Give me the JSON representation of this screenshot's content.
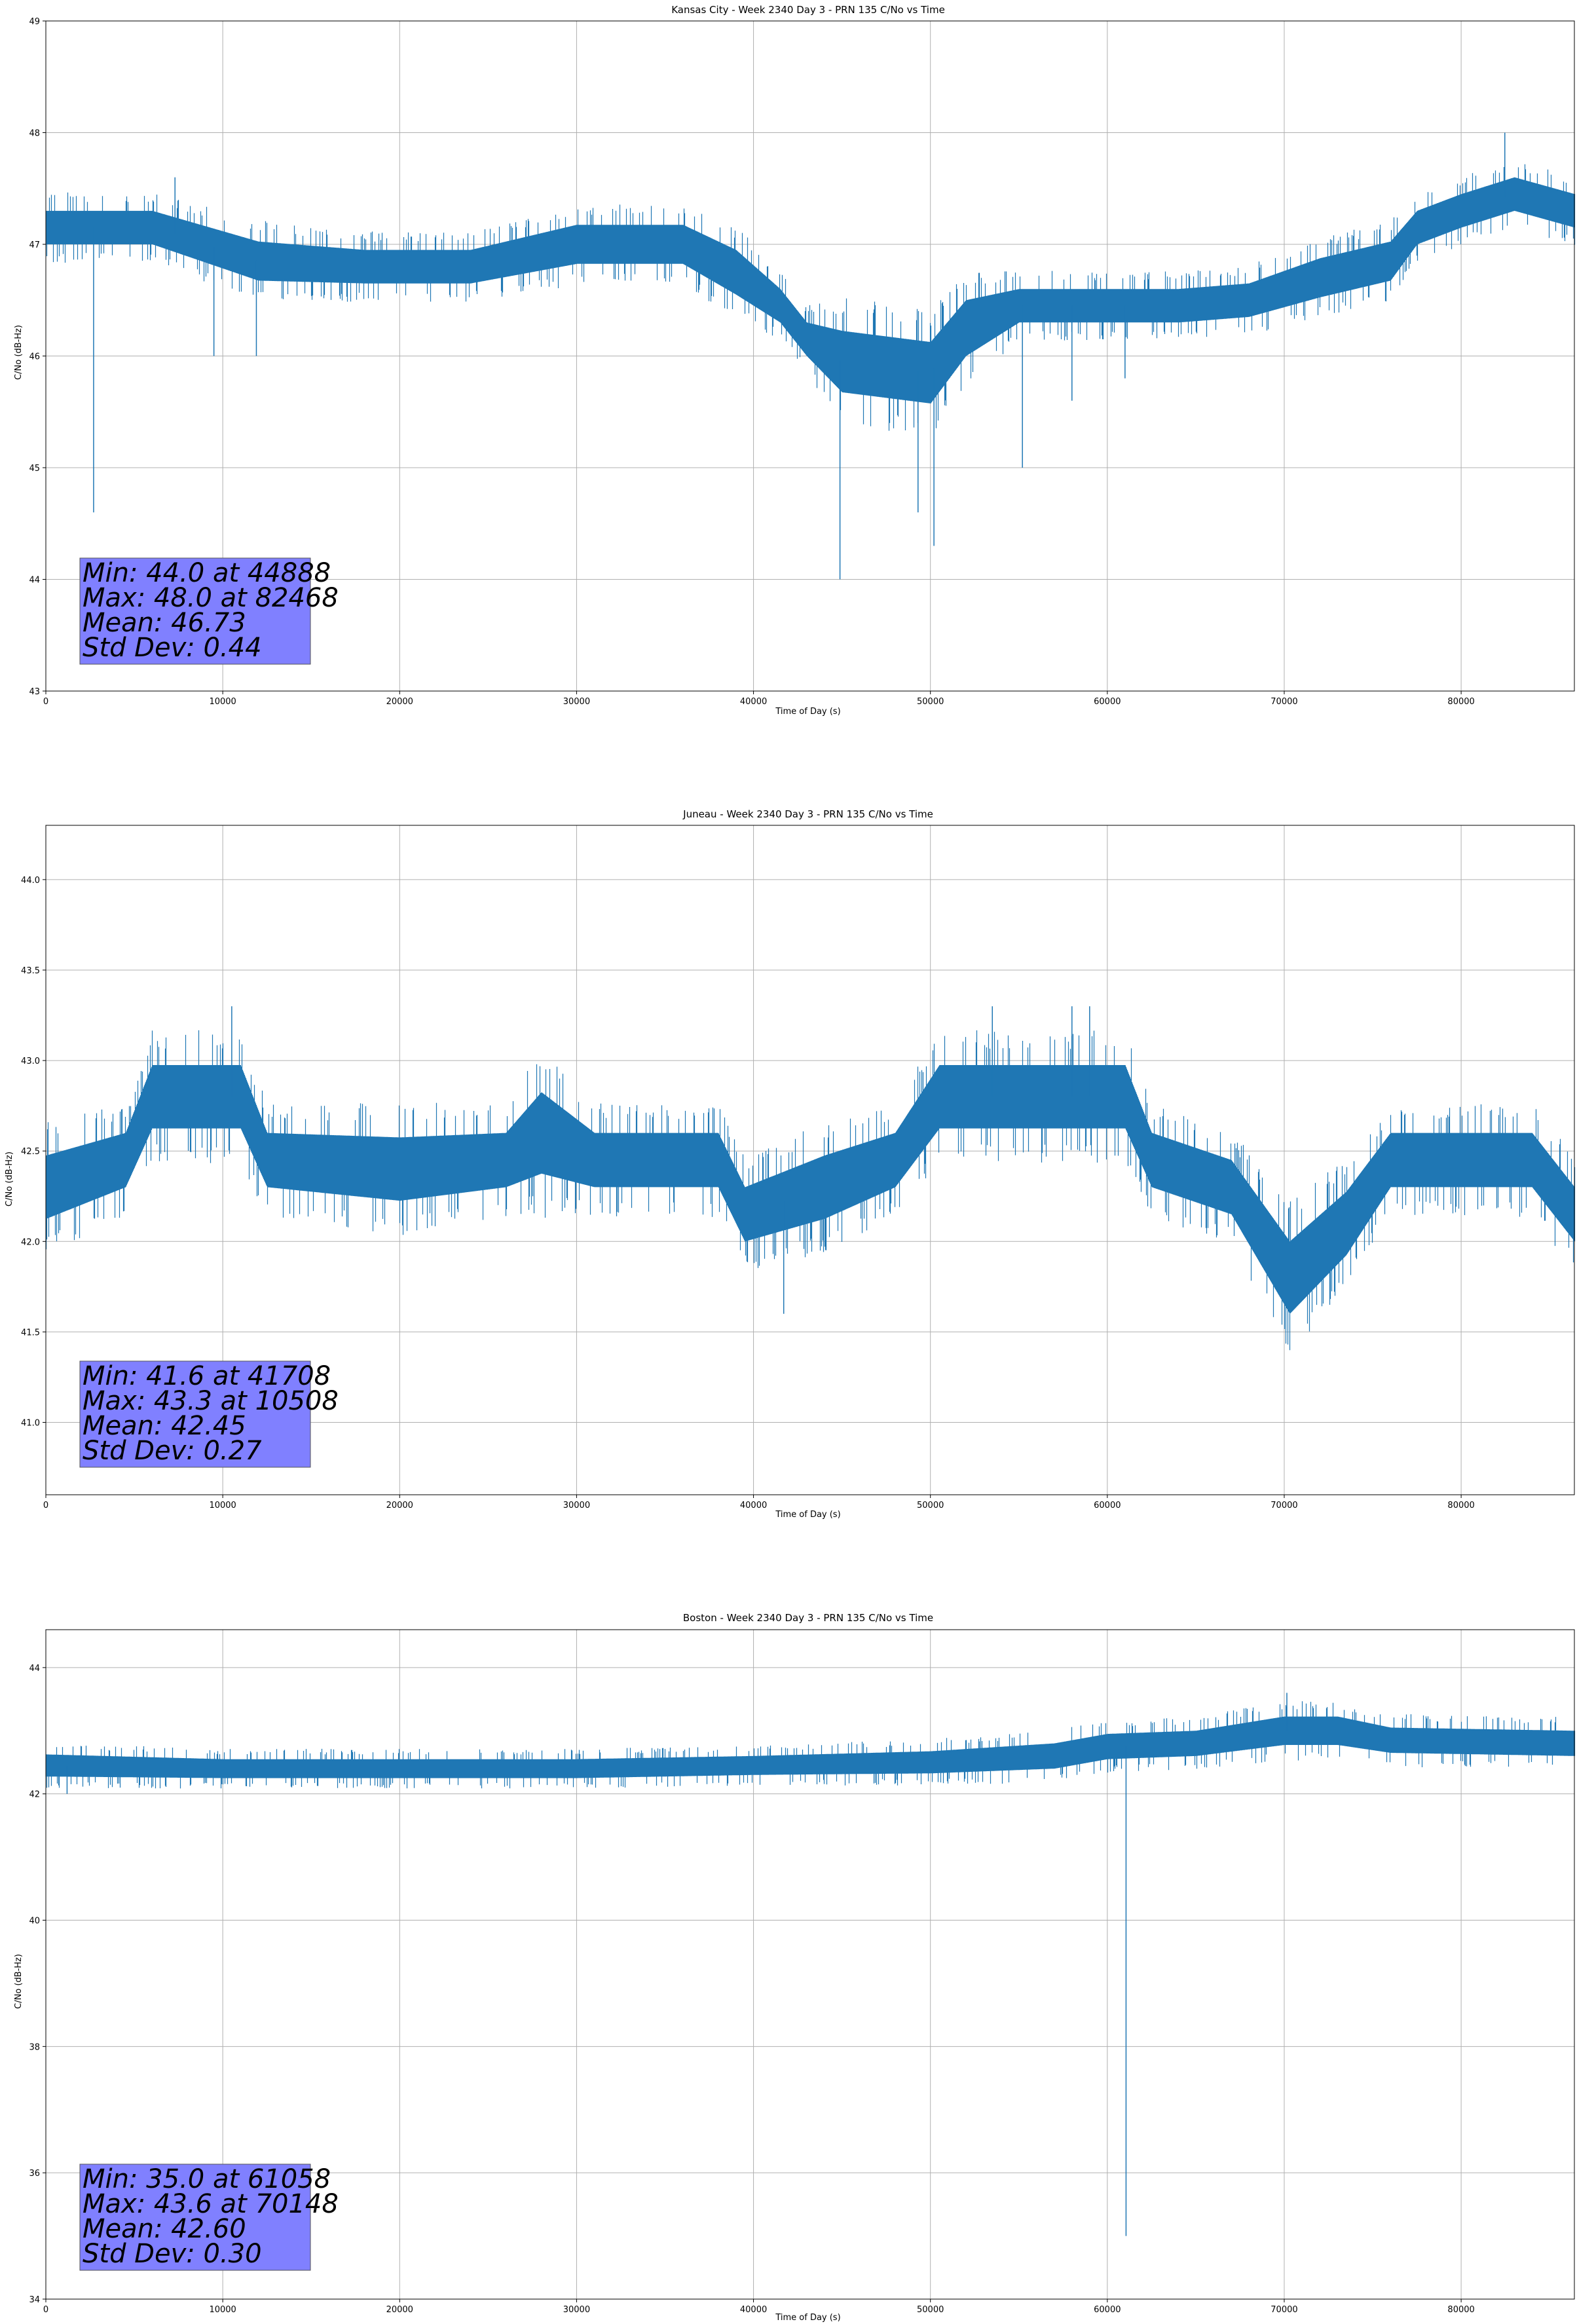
{
  "figure": {
    "background": "#ffffff",
    "line_color": "#1f77b4",
    "grid_color": "#b0b0b0",
    "stats_box_color": "#8080ff"
  },
  "chart_data": [
    {
      "type": "line",
      "title": "Kansas City - Week 2340 Day 3 - PRN 135 C/No vs Time",
      "xlabel": "Time of Day (s)",
      "ylabel": "C/No (dB-Hz)",
      "xlim": [
        0,
        86400
      ],
      "ylim": [
        43,
        49
      ],
      "xticks": [
        0,
        10000,
        20000,
        30000,
        40000,
        50000,
        60000,
        70000,
        80000
      ],
      "xtick_labels": [
        "0",
        "10000",
        "20000",
        "30000",
        "40000",
        "50000",
        "60000",
        "70000",
        "80000"
      ],
      "yticks": [
        43,
        44,
        45,
        46,
        47,
        48,
        49
      ],
      "ytick_labels": [
        "43",
        "44",
        "45",
        "46",
        "47",
        "48",
        "49"
      ],
      "grid": true,
      "series": [
        {
          "name": "C/No",
          "levels": [
            [
              0,
              47.15,
              0.3
            ],
            [
              6000,
              47.15,
              0.3
            ],
            [
              12000,
              46.85,
              0.35
            ],
            [
              18000,
              46.8,
              0.3
            ],
            [
              24000,
              46.8,
              0.3
            ],
            [
              30000,
              47.0,
              0.35
            ],
            [
              36000,
              47.0,
              0.35
            ],
            [
              39000,
              46.75,
              0.4
            ],
            [
              41500,
              46.45,
              0.3
            ],
            [
              43000,
              46.15,
              0.3
            ],
            [
              45000,
              45.95,
              0.55
            ],
            [
              50000,
              45.85,
              0.55
            ],
            [
              52000,
              46.25,
              0.5
            ],
            [
              55000,
              46.45,
              0.3
            ],
            [
              60000,
              46.45,
              0.3
            ],
            [
              64000,
              46.45,
              0.3
            ],
            [
              68000,
              46.5,
              0.3
            ],
            [
              72000,
              46.7,
              0.35
            ],
            [
              76000,
              46.85,
              0.35
            ],
            [
              77500,
              47.15,
              0.3
            ],
            [
              80000,
              47.3,
              0.3
            ],
            [
              83000,
              47.45,
              0.3
            ],
            [
              86400,
              47.3,
              0.3
            ]
          ],
          "spikes": [
            [
              2700,
              44.6
            ],
            [
              7300,
              47.6
            ],
            [
              9500,
              46.0
            ],
            [
              11900,
              46.0
            ],
            [
              44888,
              44.0
            ],
            [
              49300,
              44.6
            ],
            [
              50200,
              44.3
            ],
            [
              55200,
              45.0
            ],
            [
              58000,
              45.6
            ],
            [
              61000,
              45.8
            ],
            [
              82468,
              48.0
            ]
          ]
        }
      ],
      "stats": {
        "line1": "Min: 44.0 at 44888",
        "line2": "Max: 48.0 at 82468",
        "line3": "Mean: 46.73",
        "line4": "Std Dev: 0.44"
      }
    },
    {
      "type": "line",
      "title": "Juneau - Week 2340 Day 3 - PRN 135 C/No vs Time",
      "xlabel": "Time of Day (s)",
      "ylabel": "C/No (dB-Hz)",
      "xlim": [
        0,
        86400
      ],
      "ylim": [
        40.6,
        44.3
      ],
      "xticks": [
        0,
        10000,
        20000,
        30000,
        40000,
        50000,
        60000,
        70000,
        80000
      ],
      "xtick_labels": [
        "0",
        "10000",
        "20000",
        "30000",
        "40000",
        "50000",
        "60000",
        "70000",
        "80000"
      ],
      "yticks": [
        41.0,
        41.5,
        42.0,
        42.5,
        43.0,
        43.5,
        44.0
      ],
      "ytick_labels": [
        "41.0",
        "41.5",
        "42.0",
        "42.5",
        "43.0",
        "43.5",
        "44.0"
      ],
      "grid": true,
      "series": [
        {
          "name": "C/No",
          "levels": [
            [
              0,
              42.3,
              0.35
            ],
            [
              4500,
              42.45,
              0.3
            ],
            [
              6000,
              42.8,
              0.35
            ],
            [
              11000,
              42.8,
              0.35
            ],
            [
              12500,
              42.45,
              0.3
            ],
            [
              20000,
              42.4,
              0.35
            ],
            [
              26000,
              42.45,
              0.3
            ],
            [
              28000,
              42.6,
              0.45
            ],
            [
              31000,
              42.45,
              0.3
            ],
            [
              38000,
              42.45,
              0.3
            ],
            [
              39500,
              42.15,
              0.3
            ],
            [
              44000,
              42.3,
              0.35
            ],
            [
              48000,
              42.45,
              0.3
            ],
            [
              50500,
              42.8,
              0.35
            ],
            [
              61000,
              42.8,
              0.35
            ],
            [
              62500,
              42.45,
              0.3
            ],
            [
              67000,
              42.3,
              0.3
            ],
            [
              70300,
              41.8,
              0.4
            ],
            [
              73500,
              42.1,
              0.35
            ],
            [
              76000,
              42.45,
              0.3
            ],
            [
              84000,
              42.45,
              0.3
            ],
            [
              86400,
              42.15,
              0.3
            ]
          ],
          "spikes": [
            [
              10508,
              43.3
            ],
            [
              41708,
              41.6
            ],
            [
              53500,
              43.3
            ],
            [
              58000,
              43.3
            ],
            [
              59000,
              43.3
            ]
          ]
        }
      ],
      "stats": {
        "line1": "Min: 41.6 at 41708",
        "line2": "Max: 43.3 at 10508",
        "line3": "Mean: 42.45",
        "line4": "Std Dev: 0.27"
      }
    },
    {
      "type": "line",
      "title": "Boston - Week 2340 Day 3 - PRN 135 C/No vs Time",
      "xlabel": "Time of Day (s)",
      "ylabel": "C/No (dB-Hz)",
      "xlim": [
        0,
        86400
      ],
      "ylim": [
        34,
        44.6
      ],
      "xticks": [
        0,
        10000,
        20000,
        30000,
        40000,
        50000,
        60000,
        70000,
        80000
      ],
      "xtick_labels": [
        "0",
        "10000",
        "20000",
        "30000",
        "40000",
        "50000",
        "60000",
        "70000",
        "80000"
      ],
      "yticks": [
        34,
        36,
        38,
        40,
        42,
        44
      ],
      "ytick_labels": [
        "34",
        "36",
        "38",
        "40",
        "42",
        "44"
      ],
      "grid": true,
      "series": [
        {
          "name": "C/No",
          "levels": [
            [
              0,
              42.45,
              0.35
            ],
            [
              10000,
              42.4,
              0.3
            ],
            [
              20000,
              42.4,
              0.3
            ],
            [
              30000,
              42.4,
              0.3
            ],
            [
              40000,
              42.45,
              0.3
            ],
            [
              50000,
              42.5,
              0.35
            ],
            [
              57000,
              42.6,
              0.4
            ],
            [
              60000,
              42.75,
              0.4
            ],
            [
              65000,
              42.8,
              0.4
            ],
            [
              70000,
              43.0,
              0.45
            ],
            [
              73000,
              43.0,
              0.45
            ],
            [
              76000,
              42.85,
              0.4
            ],
            [
              86400,
              42.8,
              0.4
            ]
          ],
          "spikes": [
            [
              1200,
              42.0
            ],
            [
              61058,
              35.0
            ],
            [
              70148,
              43.6
            ]
          ]
        }
      ],
      "stats": {
        "line1": "Min: 35.0 at 61058",
        "line2": "Max: 43.6 at 70148",
        "line3": "Mean: 42.60",
        "line4": "Std Dev: 0.30"
      }
    }
  ]
}
